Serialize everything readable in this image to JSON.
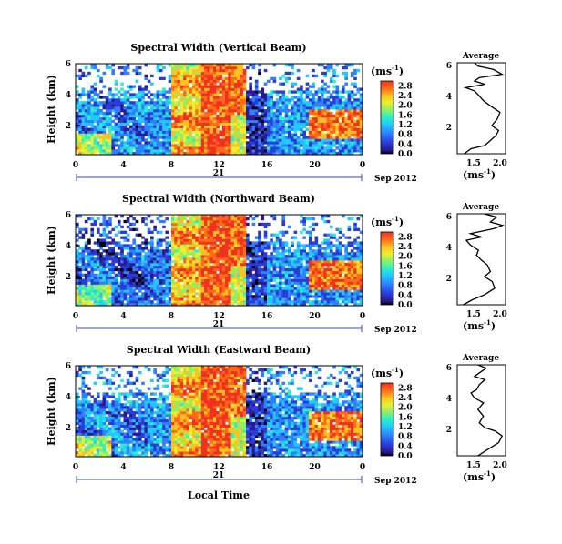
{
  "chart_data": {
    "type": "heatmap",
    "xlabel": "Local Time",
    "date_left": "21",
    "date_right": "Sep 2012",
    "colorbar_unit_base": "(ms",
    "colorbar_unit_exp": "-1",
    "colorbar_ticks": [
      "0.0",
      "0.4",
      "0.8",
      "1.2",
      "1.6",
      "2.0",
      "2.4",
      "2.8"
    ],
    "colorbar_range": [
      0.0,
      3.0
    ],
    "colors": [
      "#000000",
      "#2a1a8e",
      "#2a3cd8",
      "#2f7fff",
      "#21c8ff",
      "#2af0c8",
      "#8cf06a",
      "#e8f030",
      "#ffc020",
      "#ff6a18",
      "#f03020"
    ],
    "x_ticks": [
      "0",
      "4",
      "8",
      "12",
      "16",
      "20",
      "0"
    ],
    "x_range": [
      0,
      24
    ],
    "y_ticks": [
      "2",
      "4",
      "6"
    ],
    "y_range": [
      0.5,
      6
    ],
    "ylabel_main": "Height (km)",
    "avg_title": "Average",
    "avg_x_ticks": [
      "1.5",
      "2.0"
    ],
    "avg_xlabel_base": "(ms",
    "avg_xlabel_exp": "-1",
    "avg_y_ticks": [
      "2",
      "4",
      "6"
    ],
    "panels": [
      {
        "title": "Spectral Width (Vertical Beam)",
        "avg_xlim": [
          1.3,
          2.0
        ],
        "avg_profile": [
          [
            1.4,
            0.5
          ],
          [
            1.5,
            0.8
          ],
          [
            1.7,
            1.0
          ],
          [
            1.78,
            1.3
          ],
          [
            1.86,
            1.6
          ],
          [
            1.9,
            1.9
          ],
          [
            1.8,
            2.2
          ],
          [
            1.88,
            2.6
          ],
          [
            1.92,
            3.0
          ],
          [
            1.78,
            3.4
          ],
          [
            1.68,
            3.7
          ],
          [
            1.62,
            4.0
          ],
          [
            1.55,
            4.3
          ],
          [
            1.42,
            4.5
          ],
          [
            1.7,
            4.7
          ],
          [
            1.55,
            4.9
          ],
          [
            1.62,
            5.1
          ],
          [
            1.95,
            5.3
          ],
          [
            1.82,
            5.6
          ],
          [
            1.6,
            5.8
          ],
          [
            1.55,
            6.0
          ]
        ]
      },
      {
        "title": "Spectral Width (Northward Beam)",
        "avg_xlim": [
          1.3,
          2.1
        ],
        "avg_profile": [
          [
            1.4,
            0.5
          ],
          [
            1.55,
            0.8
          ],
          [
            1.75,
            1.1
          ],
          [
            1.92,
            1.5
          ],
          [
            1.88,
            1.9
          ],
          [
            1.75,
            2.2
          ],
          [
            1.85,
            2.5
          ],
          [
            1.8,
            2.9
          ],
          [
            1.7,
            3.2
          ],
          [
            1.62,
            3.5
          ],
          [
            1.65,
            3.8
          ],
          [
            1.52,
            4.1
          ],
          [
            1.45,
            4.4
          ],
          [
            1.7,
            4.6
          ],
          [
            1.52,
            4.8
          ],
          [
            1.9,
            5.1
          ],
          [
            2.05,
            5.3
          ],
          [
            1.85,
            5.5
          ],
          [
            1.95,
            5.8
          ],
          [
            1.75,
            6.0
          ]
        ]
      },
      {
        "title": "Spectral Width (Eastward Beam)",
        "avg_xlim": [
          1.3,
          2.0
        ],
        "avg_profile": [
          [
            1.6,
            0.5
          ],
          [
            1.75,
            0.9
          ],
          [
            1.9,
            1.3
          ],
          [
            1.95,
            1.7
          ],
          [
            1.85,
            2.0
          ],
          [
            1.7,
            2.2
          ],
          [
            1.62,
            2.5
          ],
          [
            1.68,
            2.9
          ],
          [
            1.6,
            3.3
          ],
          [
            1.68,
            3.7
          ],
          [
            1.55,
            4.0
          ],
          [
            1.5,
            4.3
          ],
          [
            1.58,
            4.5
          ],
          [
            1.62,
            4.8
          ],
          [
            1.7,
            5.1
          ],
          [
            1.55,
            5.3
          ],
          [
            1.65,
            5.6
          ],
          [
            1.72,
            5.8
          ],
          [
            1.6,
            6.0
          ]
        ]
      }
    ]
  }
}
